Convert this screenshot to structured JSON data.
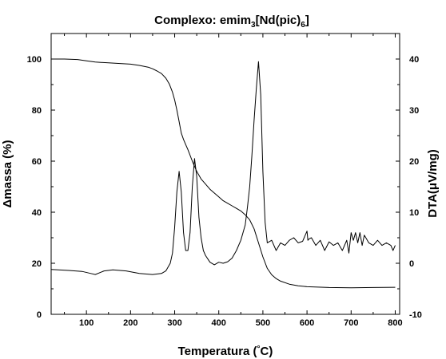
{
  "chart_data": {
    "type": "line",
    "title": {
      "prefix": "Complexo: emim",
      "sub1": "3",
      "middle": "[Nd(pic)",
      "sub2": "6",
      "suffix": "]"
    },
    "xlabel": {
      "prefix": "Temperatura (",
      "degree": "°",
      "suffix": "C)"
    },
    "ylabel_left": {
      "delta": "Δ",
      "rest": "massa (%)"
    },
    "ylabel_right": {
      "prefix": "DTA(",
      "mu": "μ",
      "suffix": "V/mg)"
    },
    "xlim": [
      20,
      810
    ],
    "ylim_left": [
      0,
      110
    ],
    "ylim_right": [
      -10,
      45
    ],
    "x_ticks": [
      100,
      200,
      300,
      400,
      500,
      600,
      700,
      800
    ],
    "y_ticks_left": [
      0,
      20,
      40,
      60,
      80,
      100
    ],
    "y_ticks_right": [
      -10,
      0,
      10,
      20,
      30,
      40
    ],
    "series": [
      {
        "axis": "left",
        "x": [
          20,
          50,
          80,
          100,
          120,
          150,
          180,
          200,
          220,
          240,
          250,
          260,
          270,
          280,
          288,
          295,
          300,
          305,
          310,
          315,
          320,
          325,
          330,
          340,
          350,
          360,
          370,
          380,
          390,
          400,
          410,
          420,
          430,
          440,
          450,
          460,
          470,
          480,
          490,
          500,
          510,
          520,
          530,
          540,
          560,
          580,
          600,
          650,
          700,
          750,
          800
        ],
        "y": [
          100,
          100,
          99.8,
          99.3,
          98.8,
          98.5,
          98.2,
          98.0,
          97.5,
          96.8,
          96.2,
          95.3,
          94.3,
          92.5,
          90.2,
          87.0,
          84.0,
          80.0,
          75.5,
          71.0,
          68.5,
          66.5,
          64.5,
          60.0,
          56.0,
          53.0,
          51.0,
          49.0,
          47.5,
          46.0,
          44.5,
          43.5,
          42.5,
          41.5,
          40.5,
          39.0,
          37.0,
          33.5,
          28.0,
          22.5,
          18.0,
          15.5,
          14.0,
          13.0,
          11.8,
          11.2,
          10.8,
          10.5,
          10.4,
          10.5,
          10.6
        ]
      },
      {
        "axis": "right",
        "x": [
          20,
          60,
          90,
          110,
          120,
          140,
          160,
          190,
          220,
          250,
          270,
          280,
          290,
          295,
          300,
          305,
          310,
          315,
          320,
          325,
          330,
          335,
          340,
          345,
          350,
          355,
          360,
          365,
          370,
          380,
          390,
          400,
          410,
          420,
          430,
          440,
          450,
          460,
          465,
          470,
          475,
          480,
          485,
          490,
          495,
          500,
          505,
          510,
          520,
          530,
          540,
          550,
          560,
          570,
          580,
          590,
          600,
          602,
          605,
          610,
          620,
          630,
          640,
          650,
          660,
          670,
          680,
          690,
          695,
          700,
          705,
          710,
          715,
          720,
          725,
          730,
          740,
          750,
          760,
          770,
          780,
          790,
          795,
          800
        ],
        "y": [
          -1.2,
          -1.4,
          -1.6,
          -2.0,
          -2.2,
          -1.5,
          -1.3,
          -1.5,
          -2.0,
          -2.2,
          -2.0,
          -1.5,
          0.0,
          2.0,
          7.0,
          14.0,
          18.0,
          14.0,
          6.0,
          2.5,
          2.5,
          6.0,
          15.0,
          20.5,
          17.0,
          9.0,
          5.0,
          2.5,
          1.5,
          0.2,
          -0.3,
          0.2,
          0.0,
          0.3,
          1.0,
          2.5,
          4.5,
          7.5,
          11.0,
          15.0,
          21.0,
          28.0,
          34.0,
          39.5,
          33.0,
          18.0,
          8.0,
          4.0,
          4.5,
          2.5,
          4.0,
          3.5,
          4.5,
          5.0,
          4.0,
          4.3,
          6.3,
          4.5,
          4.8,
          5.0,
          3.5,
          4.5,
          2.5,
          4.2,
          3.5,
          4.0,
          2.5,
          4.5,
          2.0,
          6.0,
          4.5,
          6.0,
          4.0,
          6.0,
          3.5,
          5.5,
          4.0,
          3.5,
          4.5,
          3.5,
          4.0,
          3.5,
          2.5,
          3.5
        ]
      }
    ]
  }
}
